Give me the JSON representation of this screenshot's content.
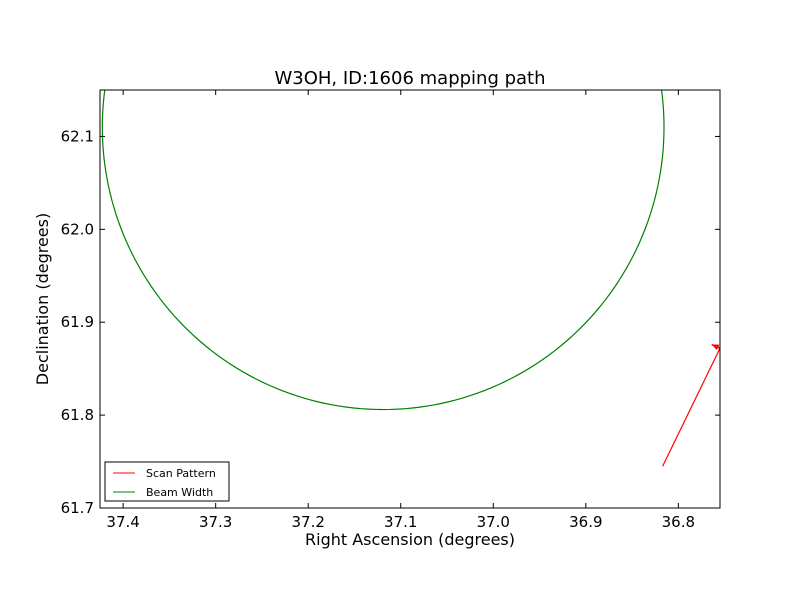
{
  "chart_data": {
    "type": "line",
    "title": "W3OH, ID:1606 mapping path",
    "xlabel": "Right Ascension (degrees)",
    "ylabel": "Declination (degrees)",
    "xlim": [
      37.425,
      36.755
    ],
    "ylim": [
      61.7,
      62.15
    ],
    "x_inverted": true,
    "x_ticks": [
      37.4,
      37.3,
      37.2,
      37.1,
      37.0,
      36.9,
      36.8
    ],
    "x_tick_labels": [
      "37.4",
      "37.3",
      "37.2",
      "37.1",
      "37.0",
      "36.9",
      "36.8"
    ],
    "y_ticks": [
      61.7,
      61.8,
      61.9,
      62.0,
      62.1
    ],
    "y_tick_labels": [
      "61.7",
      "61.8",
      "61.9",
      "62.0",
      "62.1"
    ],
    "grid": false,
    "legend_placement": "lower-left",
    "series": [
      {
        "name": "Scan Pattern",
        "color": "#ff0000",
        "kind": "line",
        "points": [
          [
            36.817,
            61.745
          ],
          [
            36.755,
            61.872
          ]
        ],
        "arrow": {
          "from": [
            36.755,
            61.872
          ],
          "to": [
            36.764,
            61.876
          ]
        }
      },
      {
        "name": "Beam Width",
        "color": "#008000",
        "kind": "circle",
        "center": [
          37.119,
          62.11
        ],
        "radius_ra": 0.3035,
        "radius_dec": 0.304
      }
    ]
  }
}
